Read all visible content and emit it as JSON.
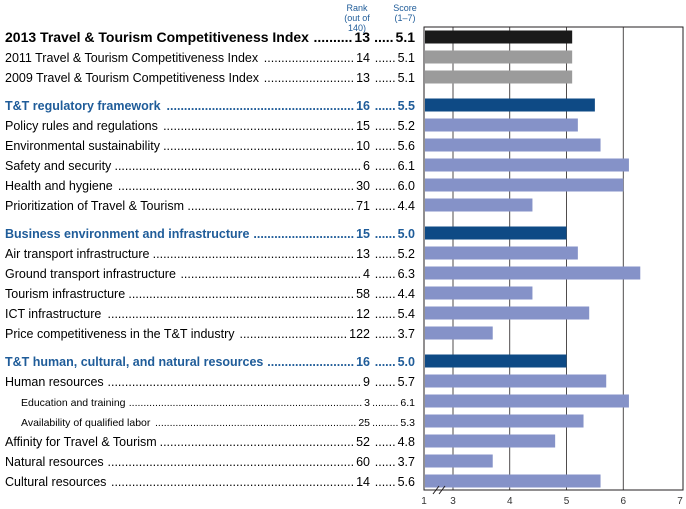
{
  "column_headers": {
    "rank": "Rank",
    "rank_sub": "(out of 140)",
    "score": "Score",
    "score_sub": "(1–7)"
  },
  "colors": {
    "top_bar": "#1a1a1a",
    "past_bar": "#9b9b9b",
    "pillar_bar": "#0e4a85",
    "header_bar": "#0e4a85",
    "indicator_bar": "#8592c8",
    "header_text": "#1f5c99"
  },
  "chart_data": {
    "type": "bar",
    "orientation": "horizontal",
    "title": "2013 Travel & Tourism Competitiveness Index",
    "xlim": [
      1,
      7
    ],
    "xticks": [
      1,
      3,
      4,
      5,
      6,
      7
    ],
    "axis_break": true,
    "rows": [
      {
        "label": "2013 Travel & Tourism Competitiveness Index",
        "rank": "13",
        "score": "5.1",
        "value": 5.1,
        "style": "top"
      },
      {
        "label": "2011 Travel & Tourism Competitiveness Index",
        "rank": "14",
        "score": "5.1",
        "value": 5.1,
        "style": "past"
      },
      {
        "label": "2009 Travel & Tourism Competitiveness Index",
        "rank": "13",
        "score": "5.1",
        "value": 5.1,
        "style": "past"
      },
      {
        "label": "T&T regulatory framework",
        "rank": "16",
        "score": "5.5",
        "value": 5.5,
        "style": "header",
        "gap_before": true
      },
      {
        "label": "Policy rules and regulations",
        "rank": "15",
        "score": "5.2",
        "value": 5.2,
        "style": "normal"
      },
      {
        "label": "Environmental sustainability",
        "rank": "10",
        "score": "5.6",
        "value": 5.6,
        "style": "normal"
      },
      {
        "label": "Safety and security",
        "rank": "6",
        "score": "6.1",
        "value": 6.1,
        "style": "normal"
      },
      {
        "label": "Health and hygiene",
        "rank": "30",
        "score": "6.0",
        "value": 6.0,
        "style": "normal"
      },
      {
        "label": "Prioritization of Travel & Tourism",
        "rank": "71",
        "score": "4.4",
        "value": 4.4,
        "style": "normal"
      },
      {
        "label": "Business environment and infrastructure",
        "rank": "15",
        "score": "5.0",
        "value": 5.0,
        "style": "header",
        "gap_before": true
      },
      {
        "label": "Air transport infrastructure",
        "rank": "13",
        "score": "5.2",
        "value": 5.2,
        "style": "normal"
      },
      {
        "label": "Ground transport infrastructure",
        "rank": "4",
        "score": "6.3",
        "value": 6.3,
        "style": "normal"
      },
      {
        "label": "Tourism infrastructure",
        "rank": "58",
        "score": "4.4",
        "value": 4.4,
        "style": "normal"
      },
      {
        "label": "ICT infrastructure",
        "rank": "12",
        "score": "5.4",
        "value": 5.4,
        "style": "normal"
      },
      {
        "label": "Price competitiveness in the T&T industry",
        "rank": "122",
        "score": "3.7",
        "value": 3.7,
        "style": "normal"
      },
      {
        "label": "T&T human, cultural, and natural resources",
        "rank": "16",
        "score": "5.0",
        "value": 5.0,
        "style": "header",
        "gap_before": true
      },
      {
        "label": "Human resources",
        "rank": "9",
        "score": "5.7",
        "value": 5.7,
        "style": "normal"
      },
      {
        "label": "Education and training",
        "rank": "3",
        "score": "6.1",
        "value": 6.1,
        "style": "sub"
      },
      {
        "label": "Availability of qualified labor",
        "rank": "25",
        "score": "5.3",
        "value": 5.3,
        "style": "sub"
      },
      {
        "label": "Affinity for Travel & Tourism",
        "rank": "52",
        "score": "4.8",
        "value": 4.8,
        "style": "normal"
      },
      {
        "label": "Natural resources",
        "rank": "60",
        "score": "3.7",
        "value": 3.7,
        "style": "normal"
      },
      {
        "label": "Cultural resources",
        "rank": "14",
        "score": "5.6",
        "value": 5.6,
        "style": "normal"
      }
    ]
  }
}
